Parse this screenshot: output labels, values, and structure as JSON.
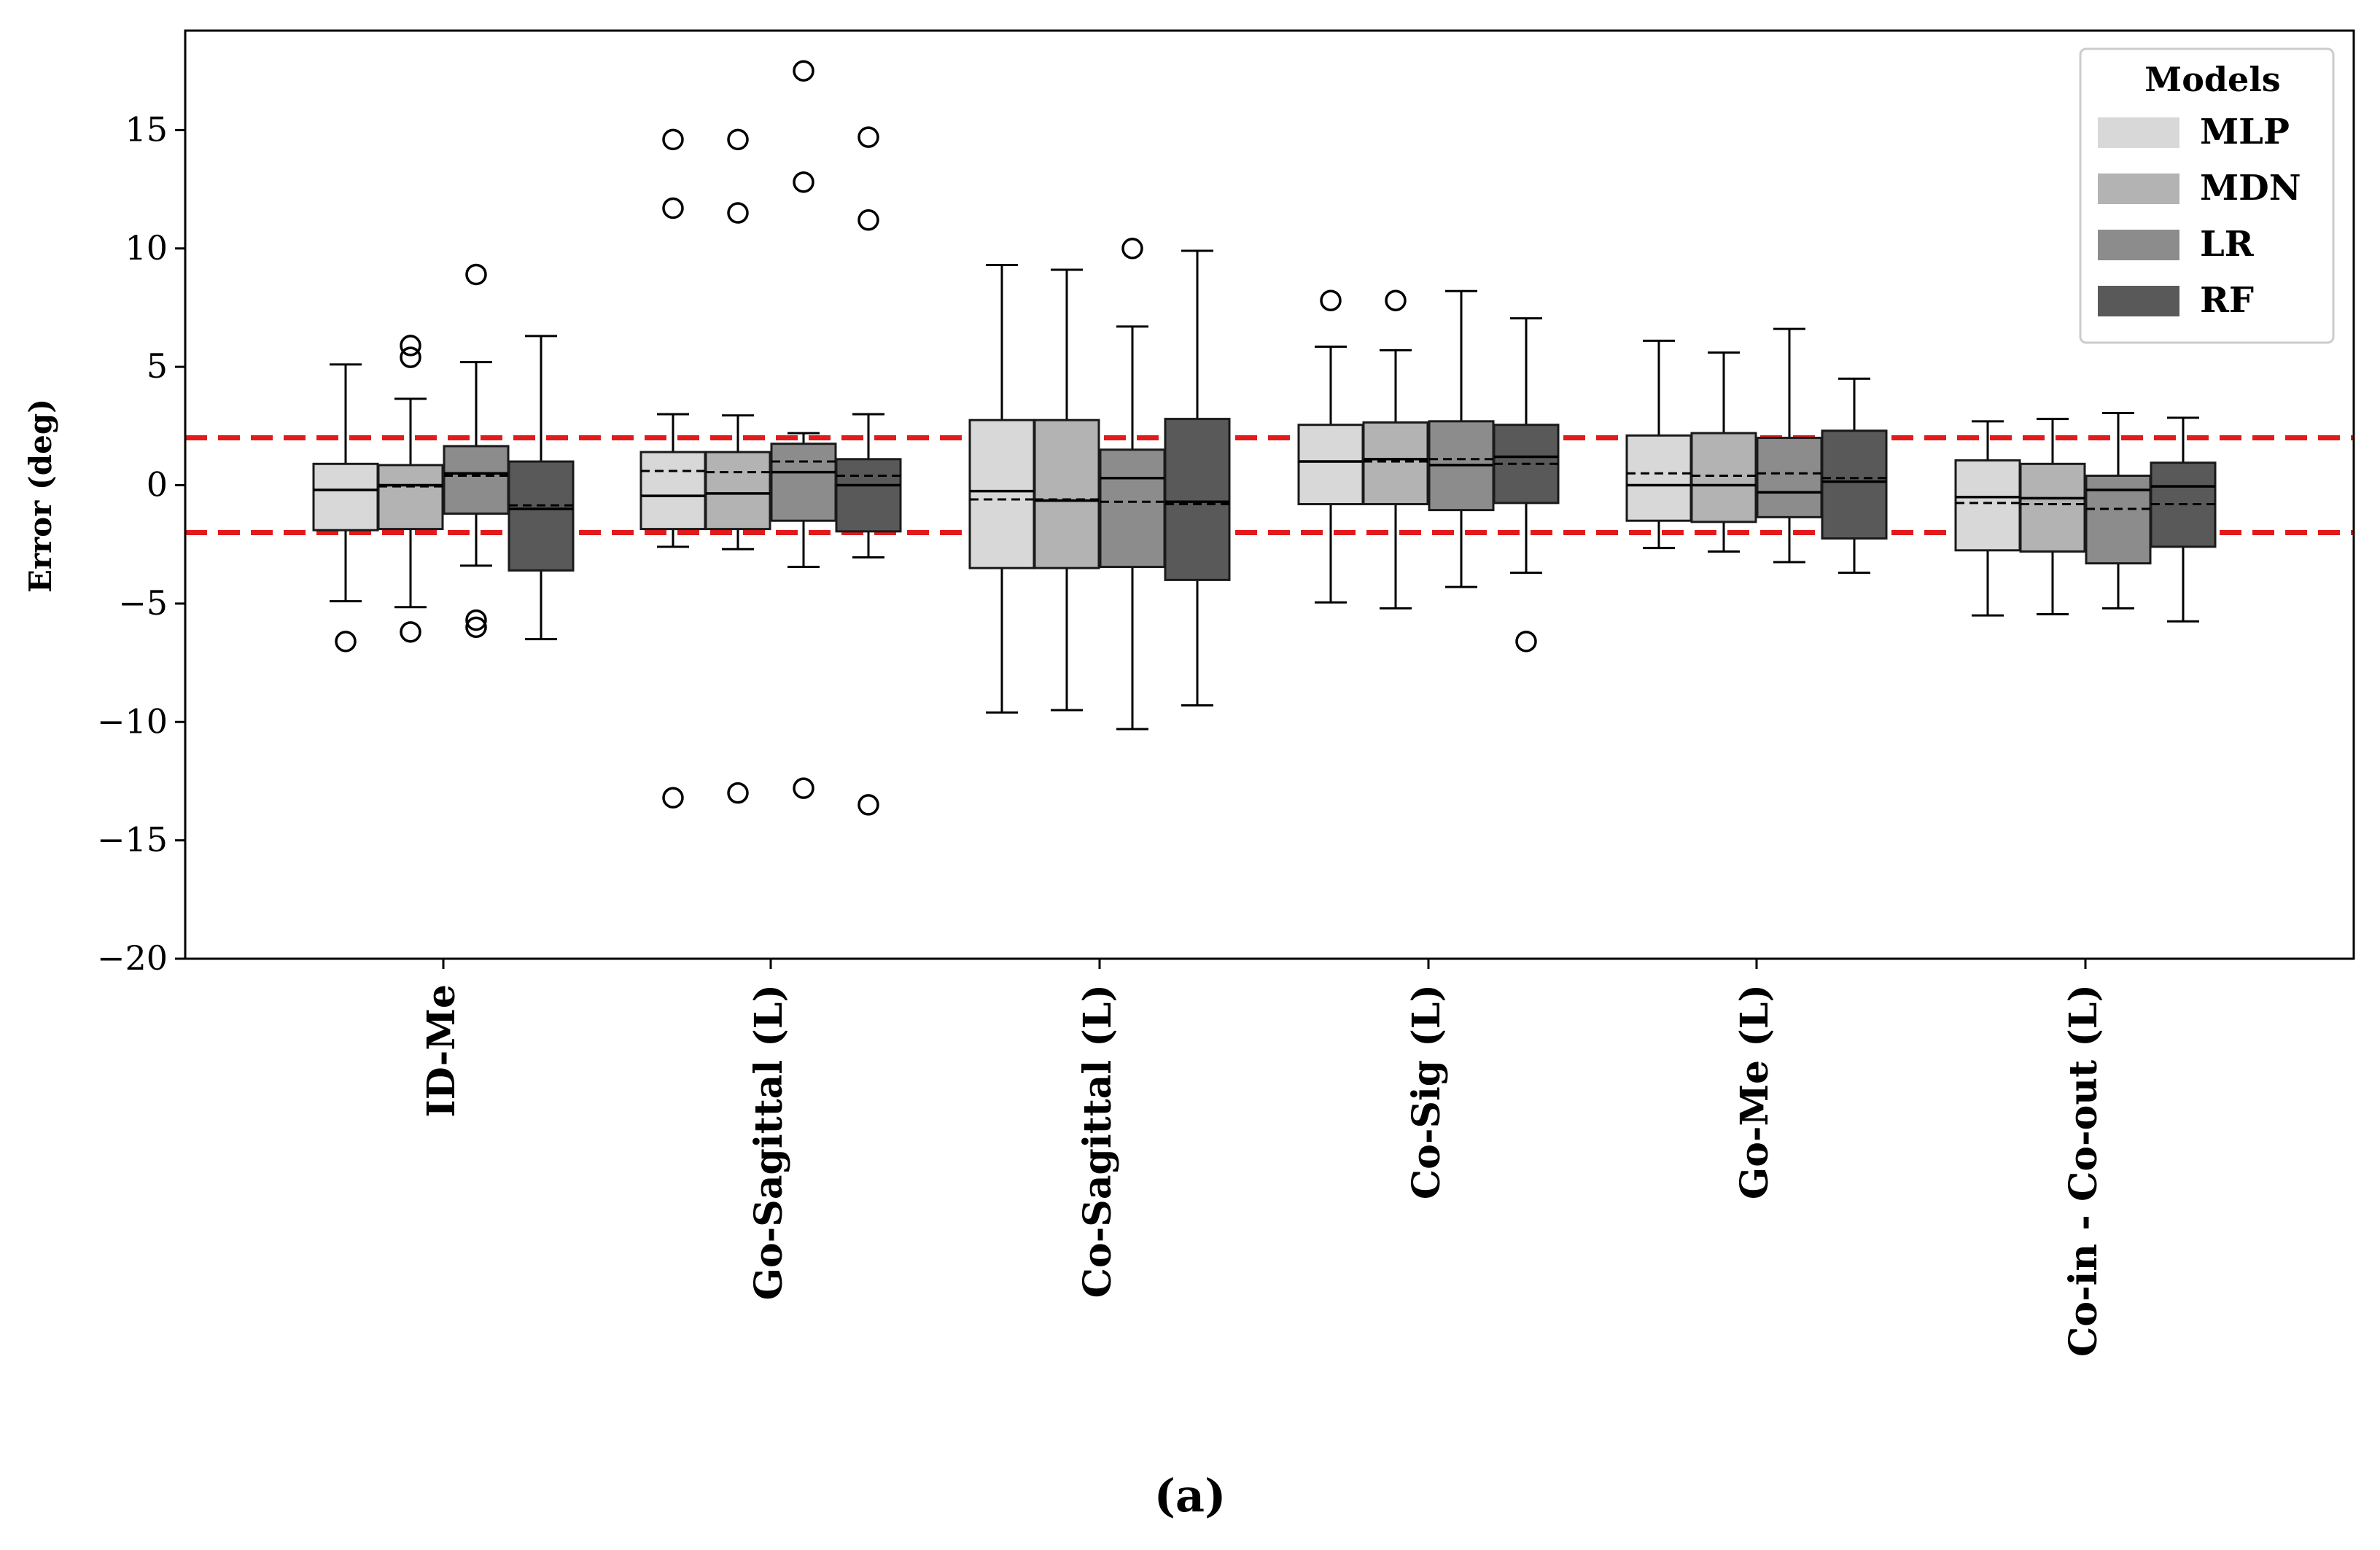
{
  "caption": "(a)",
  "chart_data": {
    "type": "box",
    "title": "",
    "xlabel": "",
    "ylabel": "Error (deg)",
    "ylim": [
      -20,
      19.2
    ],
    "yticks": [
      -20,
      -15,
      -10,
      -5,
      0,
      5,
      10,
      15
    ],
    "ytick_labels": [
      "−20",
      "−15",
      "−10",
      "−5",
      "0",
      "5",
      "10",
      "15"
    ],
    "threshold_lines": [
      2,
      -2
    ],
    "threshold_color": "#e31a1c",
    "legend": {
      "title": "Models",
      "position": "top-right",
      "entries": [
        {
          "name": "MLP",
          "color": "#d8d8d8"
        },
        {
          "name": "MDN",
          "color": "#b3b3b3"
        },
        {
          "name": "LR",
          "color": "#8c8c8c"
        },
        {
          "name": "RF",
          "color": "#595959"
        }
      ]
    },
    "categories": [
      "ID-Me",
      "Go-Sagittal (L)",
      "Co-Sagittal (L)",
      "Co-Sig (L)",
      "Go-Me (L)",
      "Co-in - Co-out (L)"
    ],
    "series": [
      {
        "name": "MLP",
        "color": "#d8d8d8",
        "boxes": [
          {
            "q1": -1.9,
            "median": -0.2,
            "q3": 0.9,
            "whislo": -4.9,
            "whishi": 5.1,
            "mean": -0.2,
            "fliers": [
              -6.6
            ]
          },
          {
            "q1": -1.85,
            "median": -0.45,
            "q3": 1.4,
            "whislo": -2.6,
            "whishi": 3.0,
            "mean": 0.6,
            "fliers": [
              11.7,
              14.6,
              -13.2
            ]
          },
          {
            "q1": -3.5,
            "median": -0.25,
            "q3": 2.75,
            "whislo": -9.6,
            "whishi": 9.3,
            "mean": -0.6,
            "fliers": []
          },
          {
            "q1": -0.8,
            "median": 1.0,
            "q3": 2.55,
            "whislo": -4.95,
            "whishi": 5.85,
            "mean": 1.0,
            "fliers": [
              7.8
            ]
          },
          {
            "q1": -1.5,
            "median": 0.0,
            "q3": 2.1,
            "whislo": -2.65,
            "whishi": 6.1,
            "mean": 0.5,
            "fliers": []
          },
          {
            "q1": -2.75,
            "median": -0.5,
            "q3": 1.05,
            "whislo": -5.5,
            "whishi": 2.7,
            "mean": -0.75,
            "fliers": []
          }
        ]
      },
      {
        "name": "MDN",
        "color": "#b3b3b3",
        "boxes": [
          {
            "q1": -1.85,
            "median": 0.0,
            "q3": 0.85,
            "whislo": -5.15,
            "whishi": 3.65,
            "mean": -0.05,
            "fliers": [
              5.9,
              5.4,
              -6.2
            ]
          },
          {
            "q1": -1.85,
            "median": -0.35,
            "q3": 1.4,
            "whislo": -2.7,
            "whishi": 2.95,
            "mean": 0.55,
            "fliers": [
              11.5,
              14.6,
              -13.0
            ]
          },
          {
            "q1": -3.5,
            "median": -0.65,
            "q3": 2.75,
            "whislo": -9.5,
            "whishi": 9.1,
            "mean": -0.6,
            "fliers": []
          },
          {
            "q1": -0.8,
            "median": 1.1,
            "q3": 2.65,
            "whislo": -5.2,
            "whishi": 5.7,
            "mean": 1.0,
            "fliers": [
              7.8
            ]
          },
          {
            "q1": -1.55,
            "median": 0.0,
            "q3": 2.2,
            "whislo": -2.8,
            "whishi": 5.6,
            "mean": 0.4,
            "fliers": []
          },
          {
            "q1": -2.8,
            "median": -0.55,
            "q3": 0.9,
            "whislo": -5.45,
            "whishi": 2.8,
            "mean": -0.8,
            "fliers": []
          }
        ]
      },
      {
        "name": "LR",
        "color": "#8c8c8c",
        "boxes": [
          {
            "q1": -1.2,
            "median": 0.5,
            "q3": 1.65,
            "whislo": -3.4,
            "whishi": 5.2,
            "mean": 0.4,
            "fliers": [
              8.9,
              -5.7,
              -6.0
            ]
          },
          {
            "q1": -1.5,
            "median": 0.55,
            "q3": 1.75,
            "whislo": -3.45,
            "whishi": 2.2,
            "mean": 1.0,
            "fliers": [
              12.8,
              17.5,
              -12.8
            ]
          },
          {
            "q1": -3.45,
            "median": 0.3,
            "q3": 1.5,
            "whislo": -10.3,
            "whishi": 6.7,
            "mean": -0.7,
            "fliers": [
              10.0
            ]
          },
          {
            "q1": -1.05,
            "median": 0.85,
            "q3": 2.7,
            "whislo": -4.3,
            "whishi": 8.2,
            "mean": 1.1,
            "fliers": []
          },
          {
            "q1": -1.35,
            "median": -0.3,
            "q3": 2.0,
            "whislo": -3.25,
            "whishi": 6.6,
            "mean": 0.5,
            "fliers": []
          },
          {
            "q1": -3.3,
            "median": -0.2,
            "q3": 0.4,
            "whislo": -5.2,
            "whishi": 3.05,
            "mean": -1.0,
            "fliers": []
          }
        ]
      },
      {
        "name": "RF",
        "color": "#595959",
        "boxes": [
          {
            "q1": -3.6,
            "median": -1.0,
            "q3": 1.0,
            "whislo": -6.5,
            "whishi": 6.3,
            "mean": -0.85,
            "fliers": []
          },
          {
            "q1": -1.95,
            "median": 0.0,
            "q3": 1.1,
            "whislo": -3.05,
            "whishi": 3.0,
            "mean": 0.4,
            "fliers": [
              11.2,
              14.7,
              -13.5
            ]
          },
          {
            "q1": -4.0,
            "median": -0.7,
            "q3": 2.8,
            "whislo": -9.3,
            "whishi": 9.9,
            "mean": -0.8,
            "fliers": []
          },
          {
            "q1": -0.75,
            "median": 1.2,
            "q3": 2.55,
            "whislo": -3.7,
            "whishi": 7.05,
            "mean": 0.9,
            "fliers": [
              -6.6
            ]
          },
          {
            "q1": -2.25,
            "median": 0.15,
            "q3": 2.3,
            "whislo": -3.7,
            "whishi": 4.5,
            "mean": 0.3,
            "fliers": []
          },
          {
            "q1": -2.6,
            "median": -0.05,
            "q3": 0.95,
            "whislo": -5.75,
            "whishi": 2.85,
            "mean": -0.8,
            "fliers": []
          }
        ]
      }
    ]
  }
}
